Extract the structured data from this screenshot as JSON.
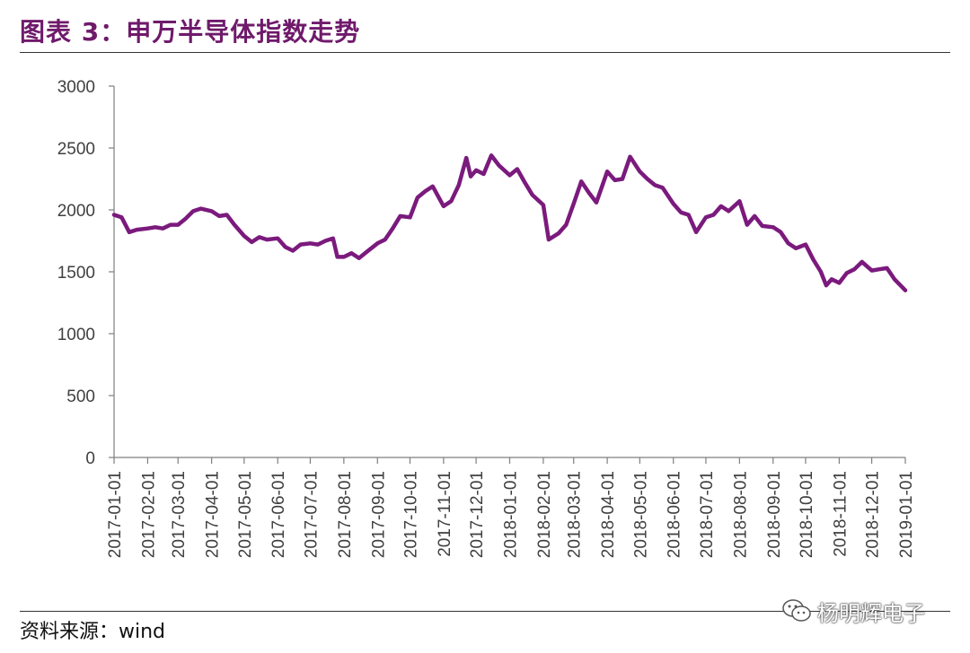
{
  "title": "图表 3：申万半导体指数走势",
  "source": "资料来源：wind",
  "watermark": "杨明辉电子",
  "colors": {
    "title": "#6f1a6b",
    "series": "#7b1a7d",
    "axis": "#7f7f7f"
  },
  "chart_data": {
    "type": "line",
    "title": "",
    "xlabel": "",
    "ylabel": "",
    "ylim": [
      0,
      3000
    ],
    "yticks": [
      0,
      500,
      1000,
      1500,
      2000,
      2500,
      3000
    ],
    "xticks": [
      "2017-01-01",
      "2017-02-01",
      "2017-03-01",
      "2017-04-01",
      "2017-05-01",
      "2017-06-01",
      "2017-07-01",
      "2017-08-01",
      "2017-09-01",
      "2017-10-01",
      "2017-11-01",
      "2017-12-01",
      "2018-01-01",
      "2018-02-01",
      "2018-03-01",
      "2018-04-01",
      "2018-05-01",
      "2018-06-01",
      "2018-07-01",
      "2018-08-01",
      "2018-09-01",
      "2018-10-01",
      "2018-11-01",
      "2018-12-01",
      "2019-01-01"
    ],
    "grid": false,
    "legend": "none",
    "series": [
      {
        "points": [
          [
            "2017-01-01",
            1960
          ],
          [
            "2017-01-08",
            1940
          ],
          [
            "2017-01-15",
            1820
          ],
          [
            "2017-01-22",
            1840
          ],
          [
            "2017-02-01",
            1850
          ],
          [
            "2017-02-08",
            1860
          ],
          [
            "2017-02-15",
            1850
          ],
          [
            "2017-02-22",
            1880
          ],
          [
            "2017-03-01",
            1880
          ],
          [
            "2017-03-08",
            1930
          ],
          [
            "2017-03-15",
            1990
          ],
          [
            "2017-03-22",
            2010
          ],
          [
            "2017-04-01",
            1990
          ],
          [
            "2017-04-08",
            1950
          ],
          [
            "2017-04-15",
            1960
          ],
          [
            "2017-04-22",
            1880
          ],
          [
            "2017-05-01",
            1790
          ],
          [
            "2017-05-08",
            1740
          ],
          [
            "2017-05-15",
            1780
          ],
          [
            "2017-05-22",
            1760
          ],
          [
            "2017-06-01",
            1770
          ],
          [
            "2017-06-08",
            1700
          ],
          [
            "2017-06-15",
            1670
          ],
          [
            "2017-06-22",
            1720
          ],
          [
            "2017-07-01",
            1730
          ],
          [
            "2017-07-08",
            1720
          ],
          [
            "2017-07-15",
            1750
          ],
          [
            "2017-07-22",
            1770
          ],
          [
            "2017-07-26",
            1620
          ],
          [
            "2017-08-01",
            1620
          ],
          [
            "2017-08-08",
            1650
          ],
          [
            "2017-08-15",
            1610
          ],
          [
            "2017-08-22",
            1660
          ],
          [
            "2017-09-01",
            1730
          ],
          [
            "2017-09-08",
            1760
          ],
          [
            "2017-09-15",
            1850
          ],
          [
            "2017-09-22",
            1950
          ],
          [
            "2017-10-01",
            1940
          ],
          [
            "2017-10-08",
            2100
          ],
          [
            "2017-10-15",
            2150
          ],
          [
            "2017-10-22",
            2190
          ],
          [
            "2017-11-01",
            2030
          ],
          [
            "2017-11-08",
            2070
          ],
          [
            "2017-11-15",
            2200
          ],
          [
            "2017-11-22",
            2420
          ],
          [
            "2017-11-26",
            2270
          ],
          [
            "2017-12-01",
            2320
          ],
          [
            "2017-12-08",
            2290
          ],
          [
            "2017-12-15",
            2440
          ],
          [
            "2017-12-22",
            2360
          ],
          [
            "2018-01-01",
            2280
          ],
          [
            "2018-01-08",
            2330
          ],
          [
            "2018-01-15",
            2220
          ],
          [
            "2018-01-22",
            2120
          ],
          [
            "2018-02-01",
            2040
          ],
          [
            "2018-02-06",
            1760
          ],
          [
            "2018-02-15",
            1810
          ],
          [
            "2018-02-22",
            1880
          ],
          [
            "2018-03-01",
            2050
          ],
          [
            "2018-03-08",
            2230
          ],
          [
            "2018-03-15",
            2140
          ],
          [
            "2018-03-22",
            2060
          ],
          [
            "2018-04-01",
            2310
          ],
          [
            "2018-04-08",
            2240
          ],
          [
            "2018-04-15",
            2250
          ],
          [
            "2018-04-22",
            2430
          ],
          [
            "2018-05-01",
            2310
          ],
          [
            "2018-05-08",
            2250
          ],
          [
            "2018-05-15",
            2200
          ],
          [
            "2018-05-22",
            2180
          ],
          [
            "2018-06-01",
            2050
          ],
          [
            "2018-06-08",
            1980
          ],
          [
            "2018-06-15",
            1960
          ],
          [
            "2018-06-22",
            1820
          ],
          [
            "2018-07-01",
            1940
          ],
          [
            "2018-07-08",
            1960
          ],
          [
            "2018-07-15",
            2030
          ],
          [
            "2018-07-22",
            1990
          ],
          [
            "2018-08-01",
            2070
          ],
          [
            "2018-08-08",
            1880
          ],
          [
            "2018-08-15",
            1950
          ],
          [
            "2018-08-22",
            1870
          ],
          [
            "2018-09-01",
            1860
          ],
          [
            "2018-09-08",
            1820
          ],
          [
            "2018-09-15",
            1730
          ],
          [
            "2018-09-22",
            1690
          ],
          [
            "2018-10-01",
            1720
          ],
          [
            "2018-10-08",
            1600
          ],
          [
            "2018-10-15",
            1500
          ],
          [
            "2018-10-20",
            1390
          ],
          [
            "2018-10-25",
            1440
          ],
          [
            "2018-11-01",
            1410
          ],
          [
            "2018-11-08",
            1490
          ],
          [
            "2018-11-15",
            1520
          ],
          [
            "2018-11-22",
            1580
          ],
          [
            "2018-12-01",
            1510
          ],
          [
            "2018-12-08",
            1520
          ],
          [
            "2018-12-15",
            1530
          ],
          [
            "2018-12-22",
            1440
          ],
          [
            "2019-01-01",
            1350
          ]
        ]
      }
    ]
  }
}
